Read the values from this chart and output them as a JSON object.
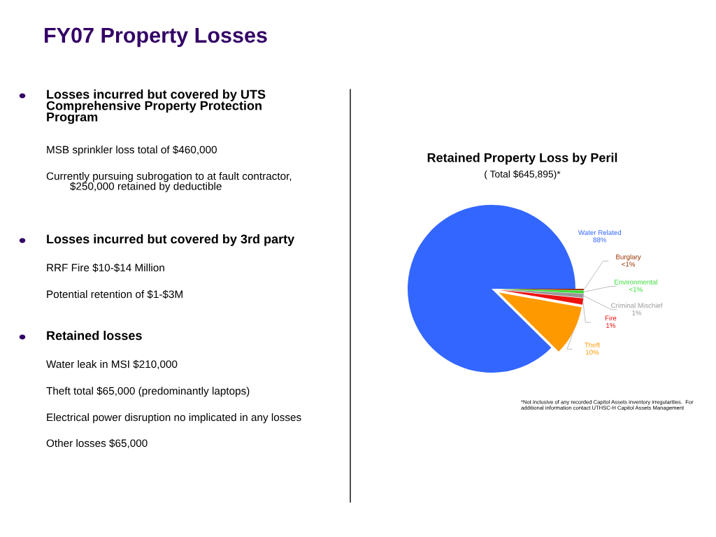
{
  "chart_data": [
    {
      "type": "other",
      "title": "FY07 Property Losses",
      "annotations": [
        "Losses incurred but covered by UTS\nComprehensive Property Protection\nProgram",
        "MSB sprinkler loss total of $460,000",
        "Currently pursuing subrogation to at fault contractor,\n        $250,000 retained by deductible",
        "Losses incurred but covered by 3rd party",
        "RRF Fire $10-$14 Million",
        "Potential retention of $1-$3M",
        "Retained losses",
        "Water leak in MSI $210,000",
        "Theft total $65,000 (predominantly laptops)",
        "Electrical power disruption no implicated in any losses",
        "Other losses $65,000"
      ]
    },
    {
      "type": "pie",
      "title": "Retained Property Loss by Peril",
      "subtitle": "( Total $645,895)*",
      "categories": [
        "Water Related",
        "Burglary",
        "Environmental",
        "Criminal Mischief",
        "Fire",
        "Theft"
      ],
      "values": [
        87.6,
        0.3,
        0.5,
        0.8,
        1.2,
        9.6
      ],
      "value_labels": [
        "88%",
        "<1%",
        "<1%",
        "1%",
        "1%",
        "10%"
      ],
      "colors": [
        "#3366ff",
        "#993300",
        "#33dd33",
        "#999999",
        "#ee1111",
        "#ff9900"
      ],
      "annotations": [
        "*Not inclusive of any recorded Capitol Assets inventory irregularities.  For additional information contact UTHSC-H Capitol Assets Management"
      ]
    }
  ]
}
